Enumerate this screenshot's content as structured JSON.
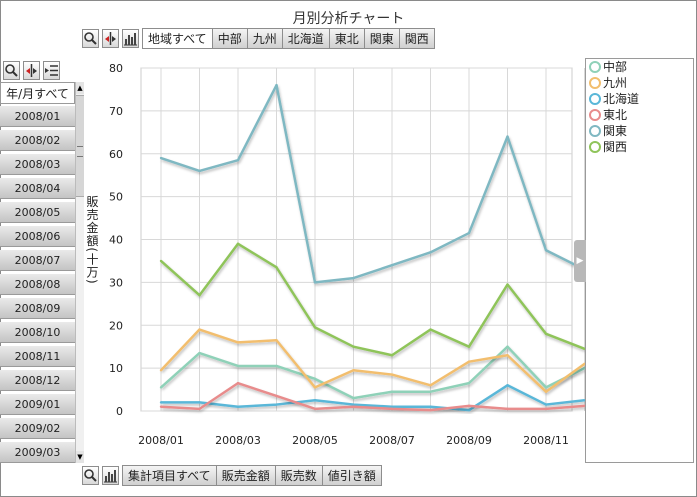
{
  "title": "月別分析チャート",
  "region_tabs": [
    "地域すべて",
    "中部",
    "九州",
    "北海道",
    "東北",
    "関東",
    "関西"
  ],
  "months_header": "年/月すべて",
  "months": [
    "2008/01",
    "2008/02",
    "2008/03",
    "2008/04",
    "2008/05",
    "2008/06",
    "2008/07",
    "2008/08",
    "2008/09",
    "2008/10",
    "2008/11",
    "2008/12",
    "2009/01",
    "2009/02",
    "2009/03"
  ],
  "measure_tabs": [
    "集計項目すべて",
    "販売金額",
    "販売数",
    "値引き額"
  ],
  "icons": {
    "top": [
      "search-icon",
      "sort-icon",
      "bar-chart-icon"
    ],
    "left": [
      "search-icon",
      "sort-icon",
      "list-icon"
    ],
    "bottom": [
      "search-icon",
      "bar-chart-icon"
    ]
  },
  "chart_data": {
    "type": "line",
    "ylabel": "販売金額(十万)",
    "xlabel": "",
    "ylim": [
      0,
      80
    ],
    "yticks": [
      0,
      10,
      20,
      30,
      40,
      50,
      60,
      70,
      80
    ],
    "x": [
      "2008/01",
      "2008/02",
      "2008/03",
      "2008/04",
      "2008/05",
      "2008/06",
      "2008/07",
      "2008/08",
      "2008/09",
      "2008/10",
      "2008/11",
      "2008/12"
    ],
    "xtick_labels": [
      "2008/01",
      "2008/03",
      "2008/05",
      "2008/07",
      "2008/09",
      "2008/11"
    ],
    "grid": true,
    "legend_position": "right",
    "series": [
      {
        "name": "中部",
        "color": "#8fd1b8",
        "values": [
          5.5,
          13.5,
          10.5,
          10.5,
          7.5,
          3,
          4.5,
          4.5,
          6.5,
          15,
          5.5,
          10
        ]
      },
      {
        "name": "九州",
        "color": "#f2be6e",
        "values": [
          9.5,
          19,
          16,
          16.5,
          5.5,
          9.5,
          8.5,
          6,
          11.5,
          13,
          4.5,
          11
        ]
      },
      {
        "name": "北海道",
        "color": "#5ab7d8",
        "values": [
          2,
          2,
          1,
          1.5,
          2.5,
          1.5,
          1,
          1,
          0.2,
          6,
          1.5,
          2.5
        ]
      },
      {
        "name": "東北",
        "color": "#e88c8c",
        "values": [
          1,
          0.5,
          6.5,
          3.5,
          0.5,
          1,
          0.5,
          0.2,
          1.2,
          0.5,
          0.5,
          1.2
        ]
      },
      {
        "name": "関東",
        "color": "#7fb8c2",
        "values": [
          59,
          56,
          58.5,
          76,
          30,
          31,
          34,
          37,
          41.5,
          64,
          37.5,
          33
        ]
      },
      {
        "name": "関西",
        "color": "#8fc45a",
        "values": [
          35,
          27,
          39,
          33.5,
          19.5,
          15,
          13,
          19,
          15,
          29.5,
          18,
          14.5
        ]
      }
    ]
  }
}
